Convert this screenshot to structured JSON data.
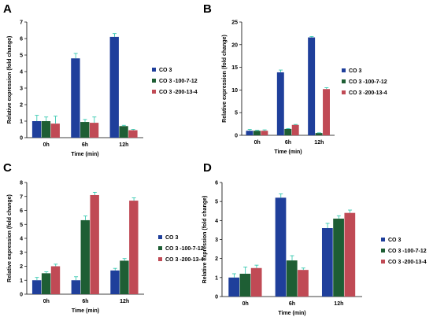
{
  "colors": {
    "CO 3": "#1f3f9b",
    "CO 3 -100-7-12": "#1e5e34",
    "CO 3 -200-13-4": "#c04a55",
    "error_bar": "#22c3a8"
  },
  "chart_data": [
    {
      "panel": "A",
      "type": "bar",
      "categories": [
        "0h",
        "6h",
        "12h"
      ],
      "xlabel": "Time (min)",
      "ylabel": "Relative expression (fold change)",
      "ylim": [
        0,
        7
      ],
      "yticks": [
        0,
        1,
        2,
        3,
        4,
        5,
        6,
        7
      ],
      "legend_position": "right",
      "series": [
        {
          "name": "CO 3",
          "values": [
            1.0,
            4.8,
            6.1
          ],
          "errors": [
            0.35,
            0.3,
            0.2
          ]
        },
        {
          "name": "CO 3 -100-7-12",
          "values": [
            1.0,
            0.95,
            0.7
          ],
          "errors": [
            0.25,
            0.15,
            0.05
          ]
        },
        {
          "name": "CO 3 -200-13-4",
          "values": [
            0.85,
            0.9,
            0.45
          ],
          "errors": [
            0.45,
            0.35,
            0.05
          ]
        }
      ]
    },
    {
      "panel": "B",
      "type": "bar",
      "categories": [
        "0h",
        "6h",
        "12h"
      ],
      "xlabel": "Time (min)",
      "ylabel": "Relative expression (fold change)",
      "ylim": [
        0,
        25
      ],
      "yticks": [
        0,
        5,
        10,
        15,
        20,
        25
      ],
      "legend_position": "right",
      "series": [
        {
          "name": "CO 3",
          "values": [
            1.0,
            13.9,
            21.6
          ],
          "errors": [
            0.3,
            0.5,
            0.2
          ]
        },
        {
          "name": "CO 3 -100-7-12",
          "values": [
            1.0,
            1.4,
            0.5
          ],
          "errors": [
            0.1,
            0.1,
            0.05
          ]
        },
        {
          "name": "CO 3 -200-13-4",
          "values": [
            1.0,
            2.3,
            10.2
          ],
          "errors": [
            0.2,
            0.1,
            0.3
          ]
        }
      ]
    },
    {
      "panel": "C",
      "type": "bar",
      "categories": [
        "0h",
        "6h",
        "12h"
      ],
      "xlabel": "Time (min)",
      "ylabel": "Relative expression (fold change)",
      "ylim": [
        0,
        8
      ],
      "yticks": [
        0,
        1,
        2,
        3,
        4,
        5,
        6,
        7,
        8
      ],
      "legend_position": "right",
      "series": [
        {
          "name": "CO 3",
          "values": [
            1.0,
            1.0,
            1.7
          ],
          "errors": [
            0.2,
            0.25,
            0.15
          ]
        },
        {
          "name": "CO 3 -100-7-12",
          "values": [
            1.5,
            5.3,
            2.4
          ],
          "errors": [
            0.1,
            0.3,
            0.15
          ]
        },
        {
          "name": "CO 3 -200-13-4",
          "values": [
            2.0,
            7.1,
            6.7
          ],
          "errors": [
            0.15,
            0.2,
            0.2
          ]
        }
      ]
    },
    {
      "panel": "D",
      "type": "bar",
      "categories": [
        "0h",
        "6h",
        "12h"
      ],
      "xlabel": "Time (min)",
      "ylabel": "Relative expression (fold change)",
      "ylim": [
        0,
        6
      ],
      "yticks": [
        0,
        1,
        2,
        3,
        4,
        5,
        6
      ],
      "legend_position": "right",
      "series": [
        {
          "name": "CO 3",
          "values": [
            1.0,
            5.2,
            3.6
          ],
          "errors": [
            0.2,
            0.2,
            0.25
          ]
        },
        {
          "name": "CO 3 -100-7-12",
          "values": [
            1.2,
            1.9,
            4.1
          ],
          "errors": [
            0.35,
            0.25,
            0.15
          ]
        },
        {
          "name": "CO 3 -200-13-4",
          "values": [
            1.5,
            1.4,
            4.4
          ],
          "errors": [
            0.15,
            0.1,
            0.15
          ]
        }
      ]
    }
  ]
}
